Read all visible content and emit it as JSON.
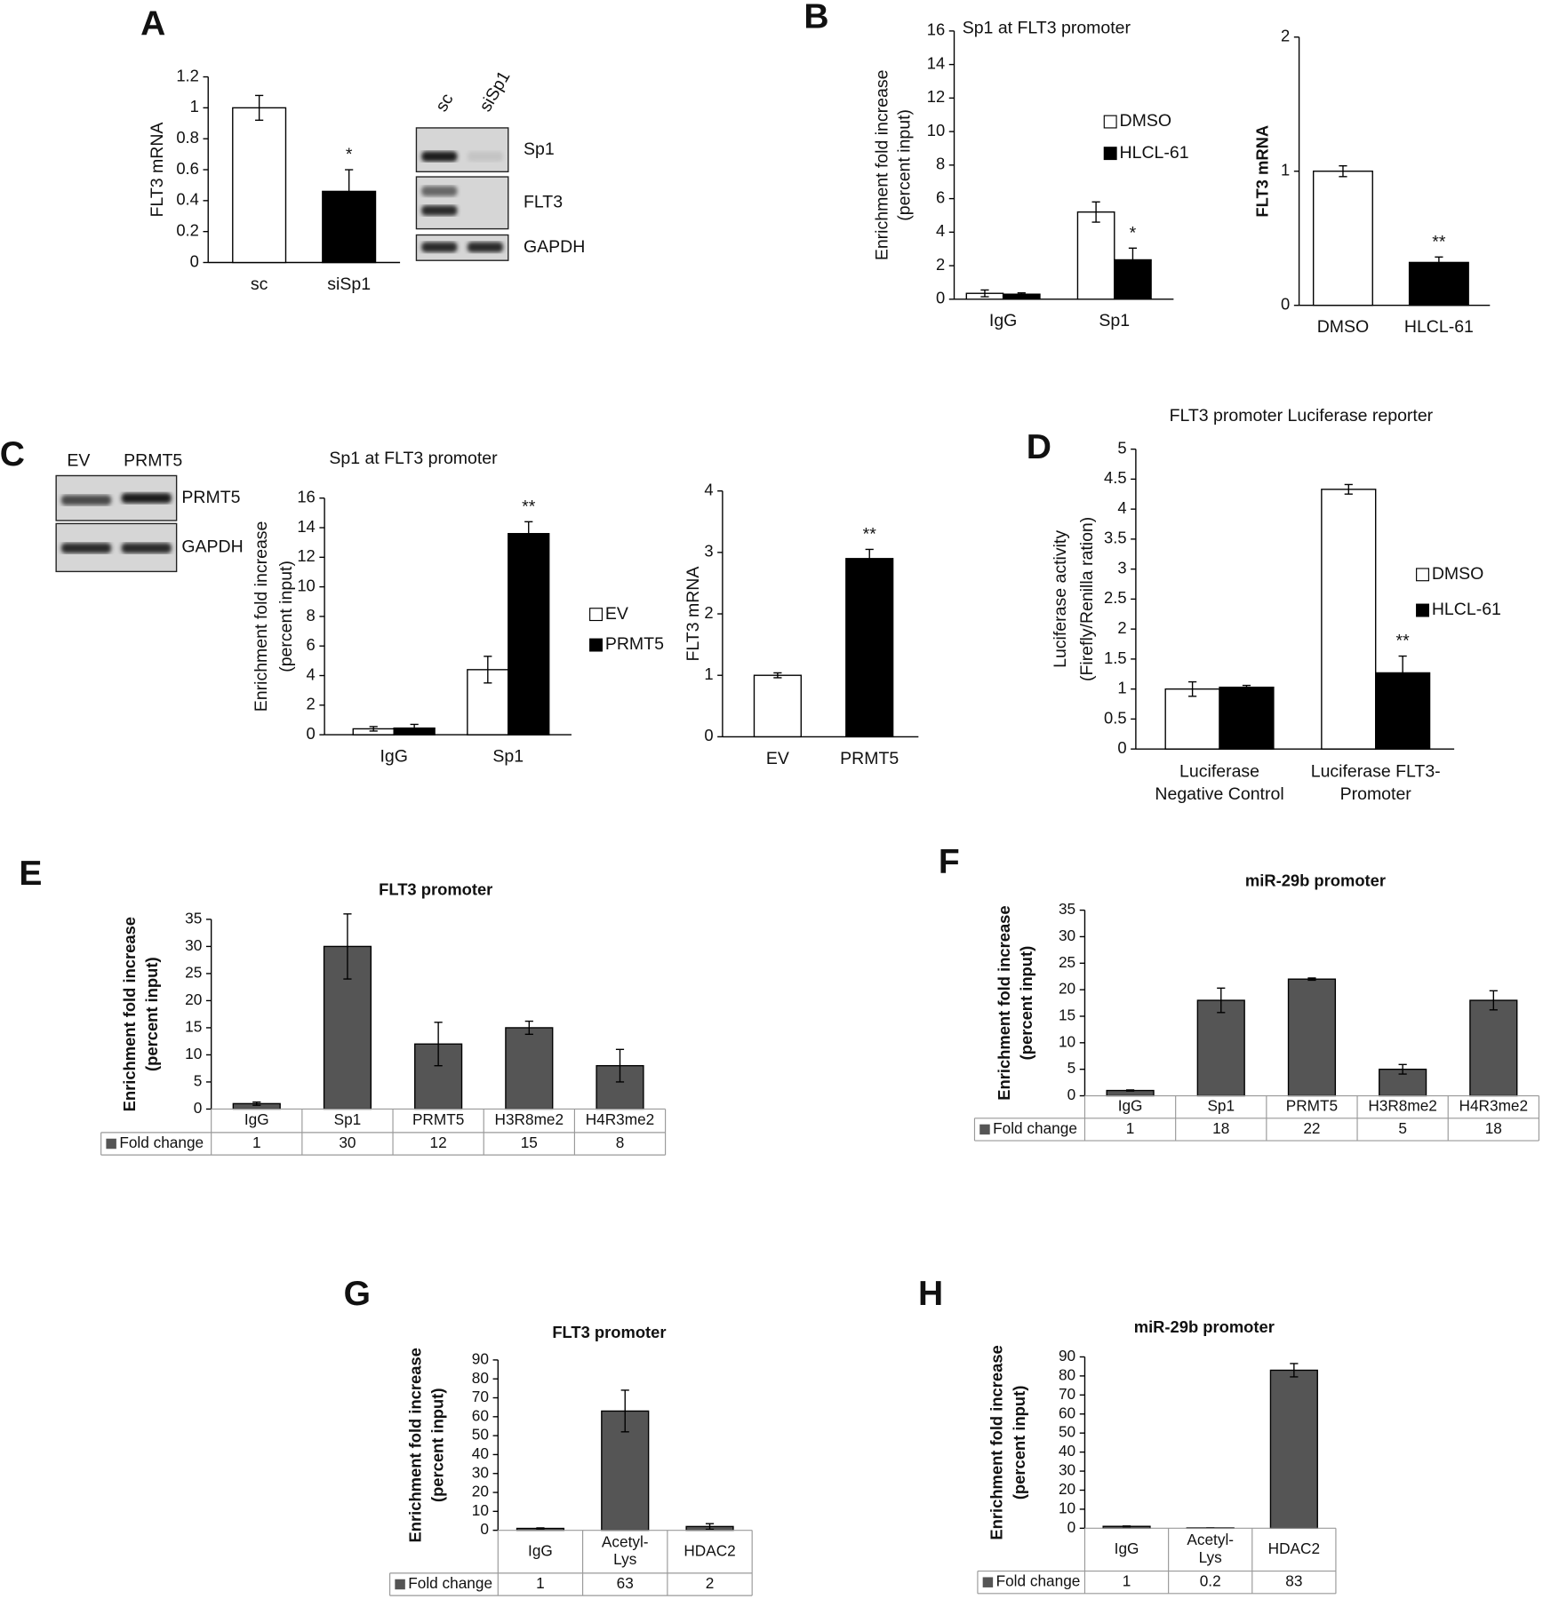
{
  "blots": [
    {
      "lanes": [
        "sc",
        "siSp1"
      ],
      "rows": [
        "Sp1",
        "FLT3",
        "GAPDH"
      ]
    },
    {
      "lanes": [
        "EV",
        "PRMT5"
      ],
      "rows": [
        "PRMT5",
        "GAPDH"
      ]
    }
  ],
  "chart_data": [
    {
      "type": "bar",
      "panel": "A",
      "ylabel": "FLT3 mRNA",
      "categories": [
        "sc",
        "siSp1"
      ],
      "values": [
        1,
        0.46
      ],
      "errors": [
        0.08,
        0.14
      ],
      "colors": [
        "#ffffff",
        "#000000"
      ],
      "significance": [
        null,
        "*"
      ],
      "ylim": [
        0,
        1.2
      ],
      "yticks": [
        0,
        0.2,
        0.4,
        0.6,
        0.8,
        1,
        1.2
      ]
    },
    {
      "type": "bar",
      "panel": "B",
      "title": "Sp1 at FLT3 promoter",
      "ylabel": [
        "Enrichment fold increase",
        "(percent input)"
      ],
      "categories": [
        "IgG",
        "Sp1"
      ],
      "series": [
        {
          "name": "DMSO",
          "color": "#ffffff",
          "values": [
            0.35,
            5.2
          ],
          "errors": [
            0.2,
            0.6
          ]
        },
        {
          "name": "HLCL-61",
          "color": "#000000",
          "values": [
            0.3,
            2.35
          ],
          "errors": [
            0.08,
            0.7
          ],
          "significance": [
            null,
            "*"
          ]
        }
      ],
      "ylim": [
        0,
        16
      ],
      "yticks": [
        0,
        2,
        4,
        6,
        8,
        10,
        12,
        14,
        16
      ]
    },
    {
      "type": "bar",
      "ylabel": "FLT3 mRNA",
      "categories": [
        "DMSO",
        "HLCL-61"
      ],
      "values": [
        1,
        0.32
      ],
      "errors": [
        0.04,
        0.04
      ],
      "colors": [
        "#ffffff",
        "#000000"
      ],
      "significance": [
        null,
        "**"
      ],
      "ylim": [
        0,
        2
      ],
      "yticks": [
        0,
        1,
        2
      ]
    },
    {
      "type": "bar",
      "panel": "C",
      "title": "Sp1 at FLT3 promoter",
      "ylabel": [
        "Enrichment fold increase",
        "(percent input)"
      ],
      "categories": [
        "IgG",
        "Sp1"
      ],
      "series": [
        {
          "name": "EV",
          "color": "#ffffff",
          "values": [
            0.4,
            4.4
          ],
          "errors": [
            0.15,
            0.9
          ]
        },
        {
          "name": "PRMT5",
          "color": "#000000",
          "values": [
            0.45,
            13.6
          ],
          "errors": [
            0.25,
            0.8
          ],
          "significance": [
            null,
            "**"
          ]
        }
      ],
      "ylim": [
        0,
        16
      ],
      "yticks": [
        0,
        2,
        4,
        6,
        8,
        10,
        12,
        14,
        16
      ]
    },
    {
      "type": "bar",
      "ylabel": "FLT3 mRNA",
      "categories": [
        "EV",
        "PRMT5"
      ],
      "values": [
        1,
        2.9
      ],
      "errors": [
        0.04,
        0.15
      ],
      "colors": [
        "#ffffff",
        "#000000"
      ],
      "significance": [
        null,
        "**"
      ],
      "ylim": [
        0,
        4
      ],
      "yticks": [
        0,
        1,
        2,
        3,
        4
      ]
    },
    {
      "type": "bar",
      "panel": "D",
      "title": "FLT3 promoter Luciferase reporter",
      "ylabel": [
        "Luciferase activity",
        "(Firefly/Renilla ration)"
      ],
      "categories": [
        [
          "Luciferase",
          "Negative Control"
        ],
        [
          "Luciferase FLT3-",
          "Promoter"
        ]
      ],
      "series": [
        {
          "name": "DMSO",
          "color": "#ffffff",
          "values": [
            1,
            4.33
          ],
          "errors": [
            0.12,
            0.08
          ]
        },
        {
          "name": "HLCL-61",
          "color": "#000000",
          "values": [
            1.03,
            1.27
          ],
          "errors": [
            0.03,
            0.28
          ],
          "significance": [
            null,
            "**"
          ]
        }
      ],
      "ylim": [
        0,
        5
      ],
      "yticks": [
        0,
        0.5,
        1,
        1.5,
        2,
        2.5,
        3,
        3.5,
        4,
        4.5,
        5
      ]
    },
    {
      "type": "bar",
      "panel": "E",
      "title": "FLT3 promoter",
      "ylabel": [
        "Enrichment fold increase",
        "(percent input)"
      ],
      "categories": [
        "IgG",
        "Sp1",
        "PRMT5",
        "H3R8me2",
        "H4R3me2"
      ],
      "series": [
        {
          "name": "Fold change",
          "color": "#555555",
          "values": [
            1,
            30,
            12,
            15,
            8
          ],
          "errors": [
            0.3,
            6,
            4,
            1.2,
            3
          ]
        }
      ],
      "data_table": true,
      "ylim": [
        0,
        35
      ],
      "yticks": [
        0,
        5,
        10,
        15,
        20,
        25,
        30,
        35
      ]
    },
    {
      "type": "bar",
      "panel": "F",
      "title": "miR-29b promoter",
      "ylabel": [
        "Enrichment fold increase",
        "(percent input)"
      ],
      "categories": [
        "IgG",
        "Sp1",
        "PRMT5",
        "H3R8me2",
        "H4R3me2"
      ],
      "series": [
        {
          "name": "Fold change",
          "color": "#555555",
          "values": [
            1,
            18,
            22,
            5,
            18
          ],
          "errors": [
            0.1,
            2.3,
            0.2,
            0.9,
            1.8
          ]
        }
      ],
      "data_table": true,
      "ylim": [
        0,
        35
      ],
      "yticks": [
        0,
        5,
        10,
        15,
        20,
        25,
        30,
        35
      ]
    },
    {
      "type": "bar",
      "panel": "G",
      "title": "FLT3 promoter",
      "ylabel": [
        "Enrichment fold increase",
        "(percent input)"
      ],
      "categories": [
        "IgG",
        [
          "Acetyl-",
          "Lys"
        ],
        "HDAC2"
      ],
      "series": [
        {
          "name": "Fold change",
          "color": "#555555",
          "values": [
            1,
            63,
            2
          ],
          "errors": [
            0.3,
            11,
            1.5
          ]
        }
      ],
      "data_table": true,
      "ylim": [
        0,
        90
      ],
      "yticks": [
        0,
        10,
        20,
        30,
        40,
        50,
        60,
        70,
        80,
        90
      ]
    },
    {
      "type": "bar",
      "panel": "H",
      "title": "miR-29b promoter",
      "ylabel": [
        "Enrichment fold increase",
        "(percent input)"
      ],
      "categories": [
        "IgG",
        [
          "Acetyl-",
          "Lys"
        ],
        "HDAC2"
      ],
      "series": [
        {
          "name": "Fold change",
          "color": "#555555",
          "values": [
            1,
            0.2,
            83
          ],
          "errors": [
            0.2,
            0.05,
            3.5
          ]
        }
      ],
      "data_table": true,
      "ylim": [
        0,
        90
      ],
      "yticks": [
        0,
        10,
        20,
        30,
        40,
        50,
        60,
        70,
        80,
        90
      ]
    }
  ]
}
